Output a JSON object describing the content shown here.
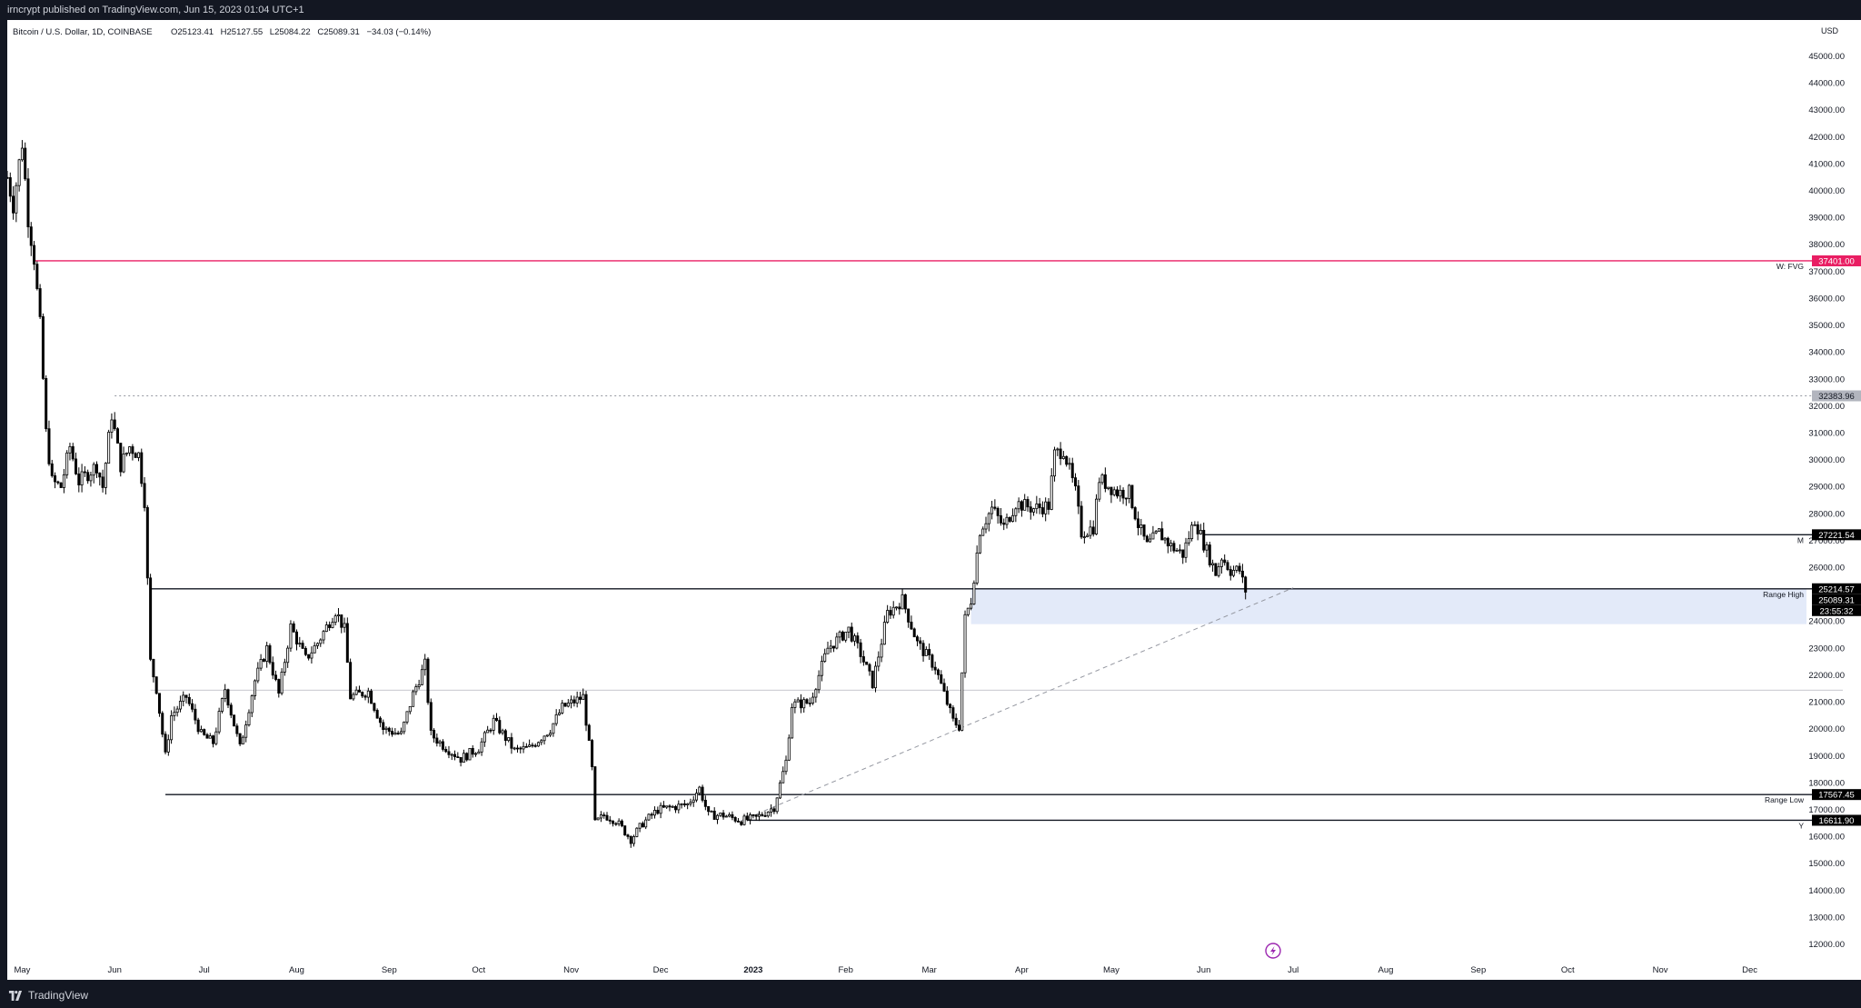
{
  "header": {
    "published": "irncrypt published on TradingView.com, Jun 15, 2023 01:04 UTC+1"
  },
  "footer": {
    "brand": "TradingView"
  },
  "colors": {
    "background_outer": "#131722",
    "chart_bg": "#ffffff",
    "candle": "#000000",
    "fvg_line": "#e91e63",
    "zone_fill": "#e3eaf9",
    "grid_text": "#131722"
  },
  "chart_data": {
    "type": "candlestick",
    "symbol_info": "Bitcoin / U.S. Dollar, 1D, COINBASE",
    "ohlc": {
      "open": "O25123.41",
      "high": "H25127.55",
      "low": "L25084.22",
      "close": "C25089.31",
      "change": "−34.03 (−0.14%)"
    },
    "currency": "USD",
    "y_range": [
      11500,
      46500
    ],
    "y_ticks": [
      "45000.00",
      "44000.00",
      "43000.00",
      "42000.00",
      "41000.00",
      "40000.00",
      "39000.00",
      "38000.00",
      "37000.00",
      "36000.00",
      "35000.00",
      "34000.00",
      "33000.00",
      "32000.00",
      "31000.00",
      "30000.00",
      "29000.00",
      "28000.00",
      "27000.00",
      "26000.00",
      "24000.00",
      "23000.00",
      "22000.00",
      "21000.00",
      "20000.00",
      "19000.00",
      "18000.00",
      "17000.00",
      "16000.00",
      "15000.00",
      "14000.00",
      "13000.00",
      "12000.00"
    ],
    "x_range": [
      "2022-04-26",
      "2023-12-20"
    ],
    "x_ticks": [
      {
        "date": "2022-05-01",
        "label": "May"
      },
      {
        "date": "2022-06-01",
        "label": "Jun"
      },
      {
        "date": "2022-07-01",
        "label": "Jul"
      },
      {
        "date": "2022-08-01",
        "label": "Aug"
      },
      {
        "date": "2022-09-01",
        "label": "Sep"
      },
      {
        "date": "2022-10-01",
        "label": "Oct"
      },
      {
        "date": "2022-11-01",
        "label": "Nov"
      },
      {
        "date": "2022-12-01",
        "label": "Dec"
      },
      {
        "date": "2023-01-01",
        "label": "2023",
        "bold": true
      },
      {
        "date": "2023-02-01",
        "label": "Feb"
      },
      {
        "date": "2023-03-01",
        "label": "Mar"
      },
      {
        "date": "2023-04-01",
        "label": "Apr"
      },
      {
        "date": "2023-05-01",
        "label": "May"
      },
      {
        "date": "2023-06-01",
        "label": "Jun"
      },
      {
        "date": "2023-07-01",
        "label": "Jul"
      },
      {
        "date": "2023-08-01",
        "label": "Aug"
      },
      {
        "date": "2023-09-01",
        "label": "Sep"
      },
      {
        "date": "2023-10-01",
        "label": "Oct"
      },
      {
        "date": "2023-11-01",
        "label": "Nov"
      },
      {
        "date": "2023-12-01",
        "label": "Dec"
      }
    ],
    "price_path": [
      [
        "2022-04-26",
        40500
      ],
      [
        "2022-04-28",
        39500
      ],
      [
        "2022-05-01",
        41800
      ],
      [
        "2022-05-03",
        39000
      ],
      [
        "2022-05-05",
        37500
      ],
      [
        "2022-05-07",
        35000
      ],
      [
        "2022-05-09",
        31000
      ],
      [
        "2022-05-11",
        29200
      ],
      [
        "2022-05-14",
        29000
      ],
      [
        "2022-05-17",
        30500
      ],
      [
        "2022-05-20",
        29200
      ],
      [
        "2022-05-23",
        29500
      ],
      [
        "2022-05-26",
        29800
      ],
      [
        "2022-05-28",
        29000
      ],
      [
        "2022-05-31",
        31700
      ],
      [
        "2022-06-03",
        29800
      ],
      [
        "2022-06-06",
        30500
      ],
      [
        "2022-06-09",
        30200
      ],
      [
        "2022-06-11",
        28500
      ],
      [
        "2022-06-13",
        22500
      ],
      [
        "2022-06-15",
        21500
      ],
      [
        "2022-06-18",
        19000
      ],
      [
        "2022-06-20",
        20500
      ],
      [
        "2022-06-25",
        21200
      ],
      [
        "2022-06-30",
        19800
      ],
      [
        "2022-07-04",
        19500
      ],
      [
        "2022-07-08",
        21500
      ],
      [
        "2022-07-13",
        19300
      ],
      [
        "2022-07-18",
        21800
      ],
      [
        "2022-07-22",
        23000
      ],
      [
        "2022-07-26",
        21300
      ],
      [
        "2022-07-30",
        23800
      ],
      [
        "2022-08-04",
        22600
      ],
      [
        "2022-08-08",
        23200
      ],
      [
        "2022-08-14",
        24400
      ],
      [
        "2022-08-17",
        23700
      ],
      [
        "2022-08-19",
        21200
      ],
      [
        "2022-08-25",
        21400
      ],
      [
        "2022-08-30",
        20000
      ],
      [
        "2022-09-05",
        19800
      ],
      [
        "2022-09-09",
        21300
      ],
      [
        "2022-09-13",
        22400
      ],
      [
        "2022-09-15",
        19800
      ],
      [
        "2022-09-19",
        19400
      ],
      [
        "2022-09-25",
        18900
      ],
      [
        "2022-10-01",
        19300
      ],
      [
        "2022-10-06",
        20300
      ],
      [
        "2022-10-13",
        19200
      ],
      [
        "2022-10-18",
        19300
      ],
      [
        "2022-10-25",
        20000
      ],
      [
        "2022-10-29",
        20800
      ],
      [
        "2022-11-05",
        21200
      ],
      [
        "2022-11-08",
        18500
      ],
      [
        "2022-11-09",
        16500
      ],
      [
        "2022-11-12",
        16800
      ],
      [
        "2022-11-16",
        16600
      ],
      [
        "2022-11-21",
        15900
      ],
      [
        "2022-11-25",
        16500
      ],
      [
        "2022-11-30",
        17000
      ],
      [
        "2022-12-05",
        17100
      ],
      [
        "2022-12-10",
        17200
      ],
      [
        "2022-12-14",
        17800
      ],
      [
        "2022-12-17",
        16800
      ],
      [
        "2022-12-22",
        16800
      ],
      [
        "2022-12-28",
        16600
      ],
      [
        "2023-01-02",
        16700
      ],
      [
        "2023-01-08",
        17100
      ],
      [
        "2023-01-12",
        18800
      ],
      [
        "2023-01-14",
        20900
      ],
      [
        "2023-01-20",
        21000
      ],
      [
        "2023-01-26",
        23000
      ],
      [
        "2023-02-02",
        23700
      ],
      [
        "2023-02-06",
        22800
      ],
      [
        "2023-02-10",
        21700
      ],
      [
        "2023-02-15",
        24300
      ],
      [
        "2023-02-20",
        24800
      ],
      [
        "2023-02-25",
        23200
      ],
      [
        "2023-03-03",
        22300
      ],
      [
        "2023-03-09",
        20300
      ],
      [
        "2023-03-11",
        20100
      ],
      [
        "2023-03-13",
        24100
      ],
      [
        "2023-03-15",
        24800
      ],
      [
        "2023-03-18",
        27400
      ],
      [
        "2023-03-22",
        28200
      ],
      [
        "2023-03-26",
        27500
      ],
      [
        "2023-03-30",
        28400
      ],
      [
        "2023-04-05",
        28200
      ],
      [
        "2023-04-10",
        28300
      ],
      [
        "2023-04-12",
        30200
      ],
      [
        "2023-04-15",
        30400
      ],
      [
        "2023-04-19",
        28800
      ],
      [
        "2023-04-21",
        27300
      ],
      [
        "2023-04-25",
        27500
      ],
      [
        "2023-04-27",
        29300
      ],
      [
        "2023-05-03",
        28800
      ],
      [
        "2023-05-07",
        28800
      ],
      [
        "2023-05-10",
        27600
      ],
      [
        "2023-05-13",
        26800
      ],
      [
        "2023-05-17",
        27300
      ],
      [
        "2023-05-21",
        26800
      ],
      [
        "2023-05-25",
        26500
      ],
      [
        "2023-05-29",
        27800
      ],
      [
        "2023-06-01",
        26900
      ],
      [
        "2023-06-05",
        25800
      ],
      [
        "2023-06-07",
        26400
      ],
      [
        "2023-06-10",
        25900
      ],
      [
        "2023-06-13",
        25900
      ],
      [
        "2023-06-15",
        25089
      ]
    ],
    "horizontal_levels": [
      {
        "name": "W: FVG",
        "price_label": "37401.00",
        "price": 37401,
        "from": "2022-05-05",
        "style": "solid",
        "color": "#e91e63",
        "label": "W: FVG"
      },
      {
        "name": "high-dotted",
        "price_label": "32383.96",
        "price": 32384,
        "from": "2022-06-01",
        "style": "dotted",
        "color": "#9598a1",
        "label": ""
      },
      {
        "name": "M",
        "price_label": "27221.54",
        "price": 27221.54,
        "from": "2023-06-01",
        "style": "solid",
        "color": "#131722",
        "label": "M"
      },
      {
        "name": "Range High",
        "price_label": "25214.57",
        "price": 25214.57,
        "from": "2022-06-13",
        "style": "solid",
        "color": "#131722",
        "label": "Range High"
      },
      {
        "name": "mid-range",
        "price_label": "",
        "price": 21450,
        "from": "2022-06-13",
        "style": "thin",
        "color": "#b2b5be",
        "label": ""
      },
      {
        "name": "Range Low",
        "price_label": "17567.45",
        "price": 17567.45,
        "from": "2022-06-18",
        "style": "solid",
        "color": "#131722",
        "label": "Range Low"
      },
      {
        "name": "Y",
        "price_label": "16611.90",
        "price": 16611.9,
        "from": "2022-12-30",
        "style": "solid",
        "color": "#131722",
        "label": "Y"
      }
    ],
    "last_price_label": "25089.31",
    "countdown_label": "23:55:32",
    "zone": {
      "from": "2023-03-15",
      "to": "2023-12-20",
      "top": 25214.57,
      "bottom": 23900
    },
    "trendline": {
      "from": [
        "2022-12-28",
        16600
      ],
      "to": [
        "2023-07-01",
        25250
      ],
      "style": "dashed"
    }
  }
}
